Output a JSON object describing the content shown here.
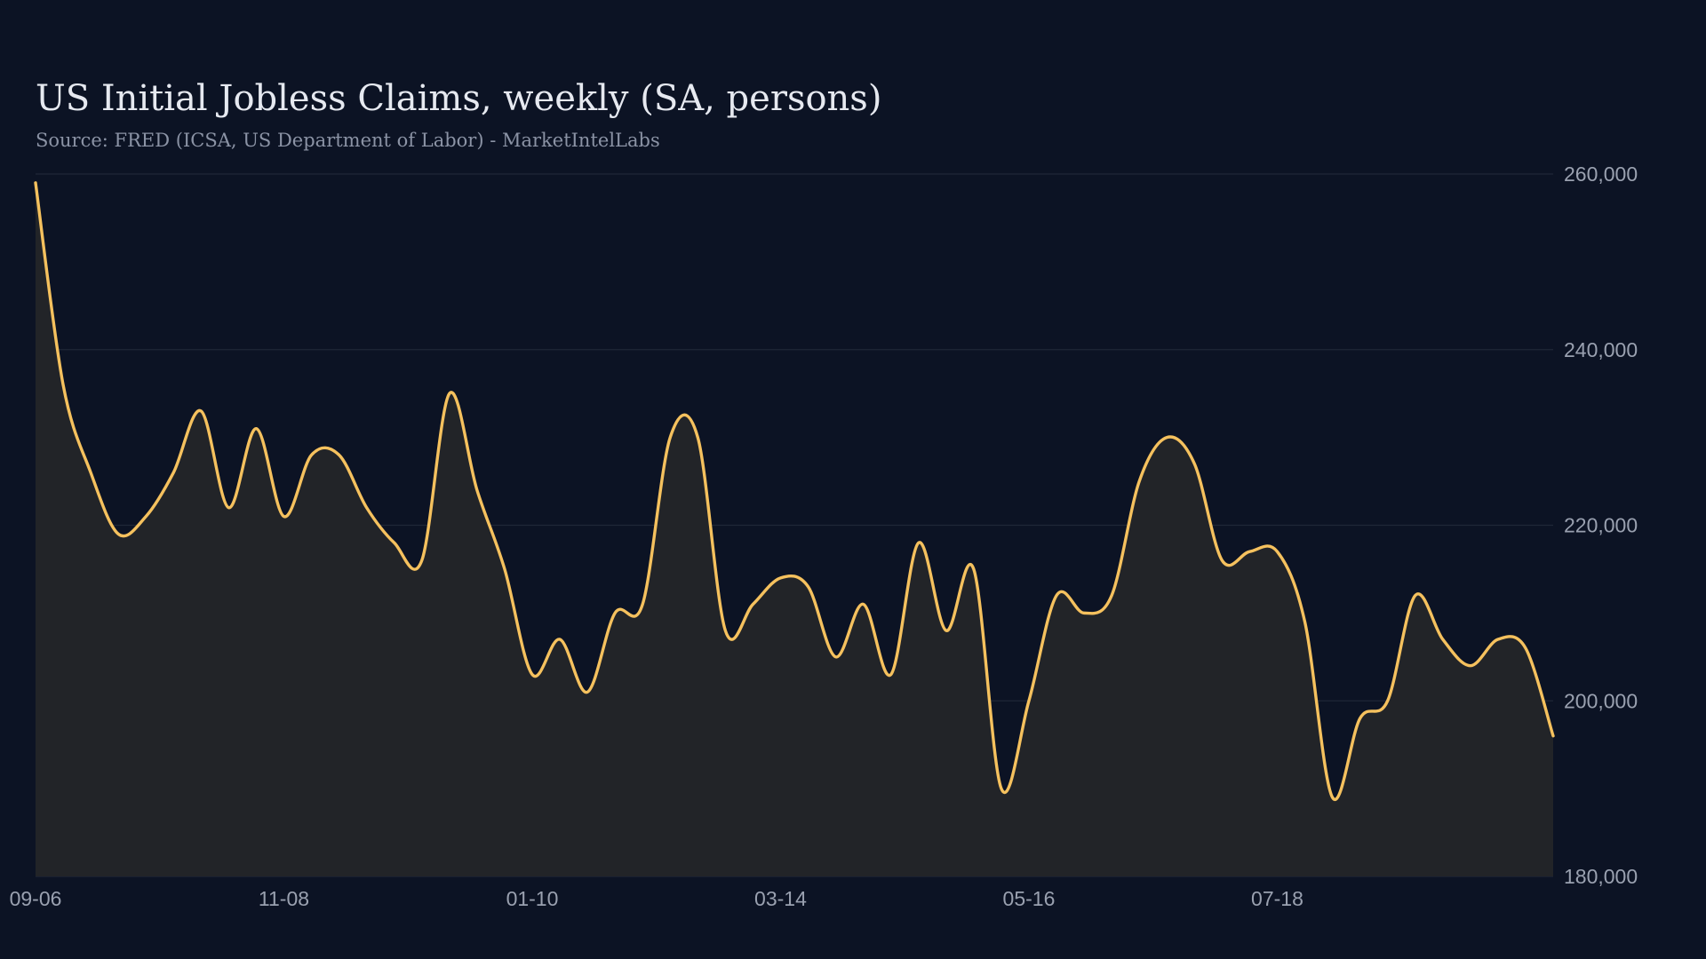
{
  "chart_data": {
    "type": "area",
    "title": "US Initial Jobless Claims, weekly (SA, persons)",
    "subtitle": "Source: FRED (ICSA, US Department of Labor) - MarketIntelLabs",
    "xlabel": "",
    "ylabel": "",
    "ylim": [
      180000,
      260000
    ],
    "y_ticks": [
      180000,
      200000,
      220000,
      240000,
      260000
    ],
    "y_tick_labels": [
      "180,000",
      "200,000",
      "220,000",
      "240,000",
      "260,000"
    ],
    "y_axis_position": "right",
    "x_tick_labels": [
      "09-06",
      "11-08",
      "01-10",
      "03-14",
      "05-16",
      "07-18"
    ],
    "x_tick_interval_weeks": 9,
    "grid": true,
    "legend": "none",
    "series": [
      {
        "values": [
          259000,
          236000,
          226000,
          219000,
          221000,
          226000,
          233000,
          222000,
          231000,
          221000,
          228000,
          228000,
          222000,
          218000,
          216000,
          235000,
          224000,
          215000,
          203000,
          207000,
          201000,
          210000,
          211000,
          230000,
          230000,
          208000,
          211000,
          214000,
          213000,
          205000,
          211000,
          203000,
          218000,
          208000,
          215000,
          190000,
          200000,
          212000,
          210000,
          212000,
          225000,
          230000,
          227000,
          216000,
          217000,
          217000,
          209000,
          189000,
          198000,
          200000,
          212000,
          207000,
          204000,
          207000,
          206000,
          196000
        ]
      }
    ],
    "colors": {
      "background": "#0c1324",
      "line": "#f5c15e",
      "area_fill": "#222428",
      "grid": "#1f2737",
      "text": "#e6e9f0",
      "muted": "#9aa1b0"
    }
  }
}
